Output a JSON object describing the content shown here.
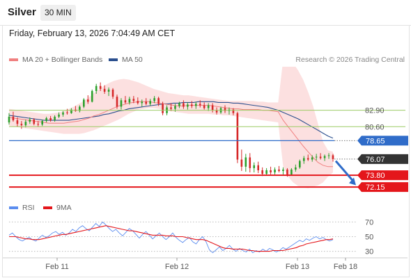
{
  "header": {
    "title": "Silver",
    "timeframe": "30 MIN"
  },
  "datetime": "Friday, February 13, 2026 7:04:49 AM CET",
  "legend": {
    "ma20_label": "MA 20 + Bollinger Bands",
    "ma50_label": "MA 50",
    "rsi_label": "RSI",
    "rsi_ma_label": "9MA"
  },
  "credit": "Research © 2026 Trading Central",
  "colors": {
    "bull": "#2ca02c",
    "bear": "#d62728",
    "ma20": "#f08080",
    "band": "#fbd5d5",
    "ma50": "#2b4f8e",
    "support": "#e4161b",
    "resistance": "#9ccc65",
    "pivot": "#2f6cc9",
    "last": "#333333",
    "rsi": "#5b8def",
    "rsi_ma": "#e4161b"
  },
  "chart_data": [
    {
      "type": "candlestick",
      "x_labels": [
        "Feb 11",
        "Feb 12",
        "Feb 13",
        "Feb 18"
      ],
      "ylim": [
        70.8,
        89.0
      ],
      "horizontal_levels": [
        {
          "label": "82.90",
          "value": 82.9,
          "kind": "resistance"
        },
        {
          "label": "80.60",
          "value": 80.6,
          "kind": "resistance"
        },
        {
          "label": "78.65",
          "value": 78.65,
          "kind": "pivot"
        },
        {
          "label": "76.07",
          "value": 76.07,
          "kind": "last"
        },
        {
          "label": "73.80",
          "value": 73.8,
          "kind": "support"
        },
        {
          "label": "72.15",
          "value": 72.15,
          "kind": "support"
        }
      ],
      "projection": {
        "from": 75.8,
        "to": 72.4
      },
      "series": [
        {
          "name": "MA 20 + Bollinger Bands",
          "style": "line+band",
          "values": [
            81.9,
            81.8,
            81.7,
            81.6,
            81.5,
            81.4,
            81.3,
            81.2,
            81.1,
            81.1,
            81.1,
            81.1,
            81.2,
            81.3,
            81.4,
            81.6,
            81.8,
            82.1,
            82.3,
            82.6,
            82.9,
            83.2,
            83.5,
            83.7,
            83.9,
            84.0,
            84.1,
            84.1,
            84.1,
            84.0,
            83.9,
            83.8,
            83.7,
            83.6,
            83.5,
            83.5,
            83.6,
            83.6,
            83.6,
            83.6,
            83.6,
            83.5,
            83.4,
            83.3,
            83.2,
            83.1,
            83.1,
            83.0,
            83.0,
            83.0,
            83.0,
            82.9,
            82.9,
            82.8,
            82.7,
            81.5,
            80.6,
            79.7,
            78.8,
            77.9,
            77.1,
            76.3,
            75.6,
            75.2,
            75.0,
            75.0
          ],
          "band_upper": [
            83.1,
            83.0,
            82.9,
            82.8,
            82.7,
            82.6,
            82.5,
            82.4,
            82.4,
            82.5,
            82.6,
            82.8,
            83.1,
            83.4,
            83.8,
            84.2,
            84.7,
            85.3,
            85.8,
            86.3,
            86.7,
            87.0,
            87.2,
            87.3,
            87.2,
            87.0,
            86.8,
            86.5,
            86.2,
            85.9,
            85.7,
            85.5,
            85.3,
            85.2,
            85.1,
            85.0,
            85.0,
            84.9,
            84.8,
            84.7,
            84.6,
            84.5,
            84.4,
            84.3,
            84.2,
            84.2,
            84.2,
            84.2,
            84.2,
            84.2,
            84.1,
            84.1,
            84.0,
            84.0,
            84.0,
            90.0,
            90.0,
            89.5,
            88.5,
            87.2,
            85.5,
            83.5,
            81.0,
            78.5,
            77.3,
            77.1
          ],
          "band_lower": [
            80.7,
            80.6,
            80.5,
            80.4,
            80.3,
            80.2,
            80.1,
            80.0,
            79.9,
            79.8,
            79.7,
            79.6,
            79.6,
            79.6,
            79.6,
            79.7,
            79.9,
            80.1,
            80.4,
            80.7,
            81.0,
            81.3,
            81.6,
            82.0,
            82.4,
            82.7,
            83.0,
            83.1,
            83.2,
            83.2,
            83.1,
            83.0,
            82.8,
            82.7,
            82.6,
            82.5,
            82.4,
            82.4,
            82.4,
            82.4,
            82.4,
            82.3,
            82.3,
            82.2,
            82.2,
            82.1,
            82.0,
            81.9,
            81.8,
            81.7,
            81.6,
            81.5,
            81.4,
            81.3,
            81.2,
            75.0,
            73.6,
            72.8,
            72.3,
            72.1,
            72.0,
            72.2,
            72.4,
            72.8,
            73.6,
            74.2
          ]
        },
        {
          "name": "MA 50",
          "style": "line",
          "values": [
            82.2,
            82.1,
            82.0,
            81.9,
            81.8,
            81.7,
            81.6,
            81.5,
            81.5,
            81.5,
            81.5,
            81.5,
            81.5,
            81.6,
            81.7,
            81.8,
            81.9,
            82.0,
            82.1,
            82.3,
            82.4,
            82.6,
            82.8,
            82.9,
            83.1,
            83.2,
            83.3,
            83.4,
            83.5,
            83.6,
            83.7,
            83.8,
            83.8,
            83.9,
            83.9,
            84.0,
            84.0,
            84.0,
            84.1,
            84.1,
            84.1,
            84.1,
            84.0,
            84.0,
            84.0,
            83.9,
            83.9,
            83.8,
            83.7,
            83.6,
            83.5,
            83.4,
            83.3,
            83.1,
            82.9,
            82.6,
            82.3,
            82.0,
            81.7,
            81.3,
            80.9,
            80.5,
            80.1,
            79.7,
            79.3,
            79.0
          ]
        }
      ],
      "candles": [
        {
          "o": 81.2,
          "h": 82.5,
          "l": 80.9,
          "c": 82.0
        },
        {
          "o": 82.0,
          "h": 82.7,
          "l": 81.3,
          "c": 81.5
        },
        {
          "o": 81.5,
          "h": 81.9,
          "l": 80.6,
          "c": 81.0
        },
        {
          "o": 81.0,
          "h": 81.4,
          "l": 80.3,
          "c": 80.8
        },
        {
          "o": 80.8,
          "h": 81.6,
          "l": 80.5,
          "c": 81.3
        },
        {
          "o": 81.3,
          "h": 81.9,
          "l": 81.0,
          "c": 81.6
        },
        {
          "o": 81.6,
          "h": 81.8,
          "l": 80.8,
          "c": 81.0
        },
        {
          "o": 81.0,
          "h": 81.4,
          "l": 80.6,
          "c": 80.9
        },
        {
          "o": 80.9,
          "h": 81.6,
          "l": 80.7,
          "c": 81.4
        },
        {
          "o": 81.4,
          "h": 82.0,
          "l": 81.2,
          "c": 81.8
        },
        {
          "o": 81.8,
          "h": 82.1,
          "l": 81.3,
          "c": 81.5
        },
        {
          "o": 81.5,
          "h": 82.2,
          "l": 81.3,
          "c": 82.0
        },
        {
          "o": 82.0,
          "h": 82.6,
          "l": 81.8,
          "c": 82.3
        },
        {
          "o": 82.3,
          "h": 82.8,
          "l": 82.0,
          "c": 82.6
        },
        {
          "o": 82.6,
          "h": 83.1,
          "l": 82.3,
          "c": 82.5
        },
        {
          "o": 82.5,
          "h": 83.2,
          "l": 82.4,
          "c": 83.0
        },
        {
          "o": 83.0,
          "h": 83.5,
          "l": 82.7,
          "c": 82.8
        },
        {
          "o": 82.8,
          "h": 83.6,
          "l": 82.6,
          "c": 83.4
        },
        {
          "o": 83.4,
          "h": 84.6,
          "l": 83.2,
          "c": 84.4
        },
        {
          "o": 84.4,
          "h": 85.0,
          "l": 83.8,
          "c": 84.1
        },
        {
          "o": 84.1,
          "h": 85.8,
          "l": 84.0,
          "c": 85.6
        },
        {
          "o": 85.6,
          "h": 86.6,
          "l": 85.2,
          "c": 86.3
        },
        {
          "o": 86.3,
          "h": 86.8,
          "l": 85.6,
          "c": 85.9
        },
        {
          "o": 85.9,
          "h": 86.4,
          "l": 85.2,
          "c": 85.5
        },
        {
          "o": 85.5,
          "h": 86.1,
          "l": 84.9,
          "c": 85.8
        },
        {
          "o": 85.8,
          "h": 86.0,
          "l": 84.5,
          "c": 84.8
        },
        {
          "o": 84.8,
          "h": 85.1,
          "l": 83.1,
          "c": 83.4
        },
        {
          "o": 83.4,
          "h": 84.6,
          "l": 83.0,
          "c": 84.3
        },
        {
          "o": 84.3,
          "h": 84.9,
          "l": 83.8,
          "c": 84.0
        },
        {
          "o": 84.0,
          "h": 84.8,
          "l": 83.7,
          "c": 84.5
        },
        {
          "o": 84.5,
          "h": 84.9,
          "l": 83.9,
          "c": 84.2
        },
        {
          "o": 84.2,
          "h": 84.7,
          "l": 83.7,
          "c": 83.9
        },
        {
          "o": 83.9,
          "h": 84.4,
          "l": 83.4,
          "c": 84.1
        },
        {
          "o": 84.1,
          "h": 84.6,
          "l": 83.6,
          "c": 83.8
        },
        {
          "o": 83.8,
          "h": 84.5,
          "l": 83.5,
          "c": 84.2
        },
        {
          "o": 84.2,
          "h": 84.9,
          "l": 83.9,
          "c": 84.6
        },
        {
          "o": 84.6,
          "h": 84.8,
          "l": 83.5,
          "c": 83.8
        },
        {
          "o": 83.8,
          "h": 84.1,
          "l": 82.2,
          "c": 82.5
        },
        {
          "o": 82.5,
          "h": 83.6,
          "l": 82.2,
          "c": 83.3
        },
        {
          "o": 83.3,
          "h": 83.9,
          "l": 82.8,
          "c": 83.1
        },
        {
          "o": 83.1,
          "h": 83.8,
          "l": 82.7,
          "c": 83.5
        },
        {
          "o": 83.5,
          "h": 84.1,
          "l": 83.2,
          "c": 83.9
        },
        {
          "o": 83.9,
          "h": 84.3,
          "l": 83.1,
          "c": 83.4
        },
        {
          "o": 83.4,
          "h": 84.0,
          "l": 83.0,
          "c": 83.7
        },
        {
          "o": 83.7,
          "h": 84.2,
          "l": 83.2,
          "c": 83.5
        },
        {
          "o": 83.5,
          "h": 84.1,
          "l": 83.1,
          "c": 83.8
        },
        {
          "o": 83.8,
          "h": 84.3,
          "l": 83.3,
          "c": 83.6
        },
        {
          "o": 83.6,
          "h": 84.0,
          "l": 83.0,
          "c": 83.2
        },
        {
          "o": 83.2,
          "h": 83.9,
          "l": 82.8,
          "c": 83.6
        },
        {
          "o": 83.6,
          "h": 83.9,
          "l": 82.6,
          "c": 82.9
        },
        {
          "o": 82.9,
          "h": 83.3,
          "l": 82.3,
          "c": 82.6
        },
        {
          "o": 82.6,
          "h": 83.4,
          "l": 82.4,
          "c": 83.2
        },
        {
          "o": 83.2,
          "h": 83.6,
          "l": 82.5,
          "c": 82.8
        },
        {
          "o": 82.8,
          "h": 83.3,
          "l": 82.3,
          "c": 83.0
        },
        {
          "o": 83.0,
          "h": 83.2,
          "l": 82.2,
          "c": 82.5
        },
        {
          "o": 82.5,
          "h": 82.7,
          "l": 75.5,
          "c": 76.0
        },
        {
          "o": 76.0,
          "h": 77.4,
          "l": 74.4,
          "c": 75.0
        },
        {
          "o": 75.0,
          "h": 76.8,
          "l": 74.3,
          "c": 76.3
        },
        {
          "o": 76.3,
          "h": 76.9,
          "l": 74.2,
          "c": 74.8
        },
        {
          "o": 74.8,
          "h": 75.6,
          "l": 74.2,
          "c": 75.2
        },
        {
          "o": 75.2,
          "h": 75.7,
          "l": 74.1,
          "c": 74.5
        },
        {
          "o": 74.5,
          "h": 74.9,
          "l": 73.7,
          "c": 74.0
        },
        {
          "o": 74.0,
          "h": 74.8,
          "l": 73.8,
          "c": 74.5
        },
        {
          "o": 74.5,
          "h": 75.0,
          "l": 73.9,
          "c": 74.2
        },
        {
          "o": 74.2,
          "h": 74.9,
          "l": 73.9,
          "c": 74.6
        },
        {
          "o": 74.6,
          "h": 75.1,
          "l": 74.2,
          "c": 74.4
        },
        {
          "o": 74.4,
          "h": 74.9,
          "l": 73.9,
          "c": 74.6
        },
        {
          "o": 74.6,
          "h": 74.8,
          "l": 73.6,
          "c": 73.9
        },
        {
          "o": 73.9,
          "h": 74.8,
          "l": 73.8,
          "c": 74.6
        },
        {
          "o": 74.6,
          "h": 75.3,
          "l": 74.3,
          "c": 74.9
        },
        {
          "o": 74.9,
          "h": 76.0,
          "l": 74.7,
          "c": 75.8
        },
        {
          "o": 75.8,
          "h": 76.5,
          "l": 75.4,
          "c": 76.2
        },
        {
          "o": 76.2,
          "h": 76.7,
          "l": 75.8,
          "c": 76.0
        },
        {
          "o": 76.0,
          "h": 76.6,
          "l": 75.7,
          "c": 76.3
        },
        {
          "o": 76.3,
          "h": 76.8,
          "l": 75.9,
          "c": 76.4
        },
        {
          "o": 76.4,
          "h": 76.9,
          "l": 76.0,
          "c": 76.2
        },
        {
          "o": 76.2,
          "h": 76.7,
          "l": 75.8,
          "c": 76.5
        },
        {
          "o": 76.5,
          "h": 76.9,
          "l": 76.1,
          "c": 76.6
        },
        {
          "o": 76.6,
          "h": 76.8,
          "l": 75.7,
          "c": 76.07
        }
      ]
    },
    {
      "type": "line",
      "legend": [
        "RSI",
        "9MA"
      ],
      "ylim": [
        22,
        78
      ],
      "y_ticks": [
        70,
        50,
        30
      ],
      "series": [
        {
          "name": "RSI",
          "values": [
            52,
            55,
            50,
            46,
            44,
            47,
            49,
            46,
            44,
            48,
            52,
            49,
            51,
            55,
            57,
            53,
            56,
            52,
            55,
            60,
            57,
            62,
            65,
            61,
            58,
            63,
            68,
            64,
            70,
            66,
            61,
            57,
            60,
            55,
            51,
            56,
            61,
            58,
            53,
            48,
            53,
            57,
            52,
            47,
            51,
            55,
            50,
            46,
            50,
            55,
            49,
            45,
            42,
            46,
            49,
            43,
            40,
            46,
            50,
            43,
            32,
            28,
            32,
            36,
            31,
            34,
            38,
            33,
            30,
            34,
            31,
            29,
            33,
            28,
            31,
            29,
            33,
            30,
            34,
            32,
            29,
            31,
            35,
            33,
            36,
            39,
            42,
            45,
            43,
            47,
            45,
            48,
            50,
            47,
            49,
            46,
            44,
            46
          ]
        },
        {
          "name": "9MA",
          "values": [
            50,
            50,
            50,
            49,
            48,
            47,
            47,
            46,
            46,
            46,
            47,
            48,
            49,
            50,
            51,
            52,
            53,
            53,
            54,
            55,
            56,
            57,
            58,
            59,
            60,
            61,
            62,
            63,
            64,
            65,
            64,
            63,
            62,
            61,
            60,
            59,
            58,
            58,
            57,
            56,
            55,
            54,
            53,
            52,
            52,
            52,
            52,
            51,
            51,
            51,
            50,
            50,
            50,
            49,
            48,
            47,
            46,
            46,
            46,
            45,
            43,
            41,
            39,
            37,
            35,
            34,
            34,
            33,
            33,
            33,
            33,
            32,
            31,
            31,
            30,
            30,
            30,
            30,
            30,
            31,
            31,
            31,
            31,
            32,
            33,
            34,
            35,
            37,
            38,
            40,
            41,
            42,
            43,
            44,
            45,
            46,
            46,
            47
          ]
        }
      ]
    }
  ]
}
